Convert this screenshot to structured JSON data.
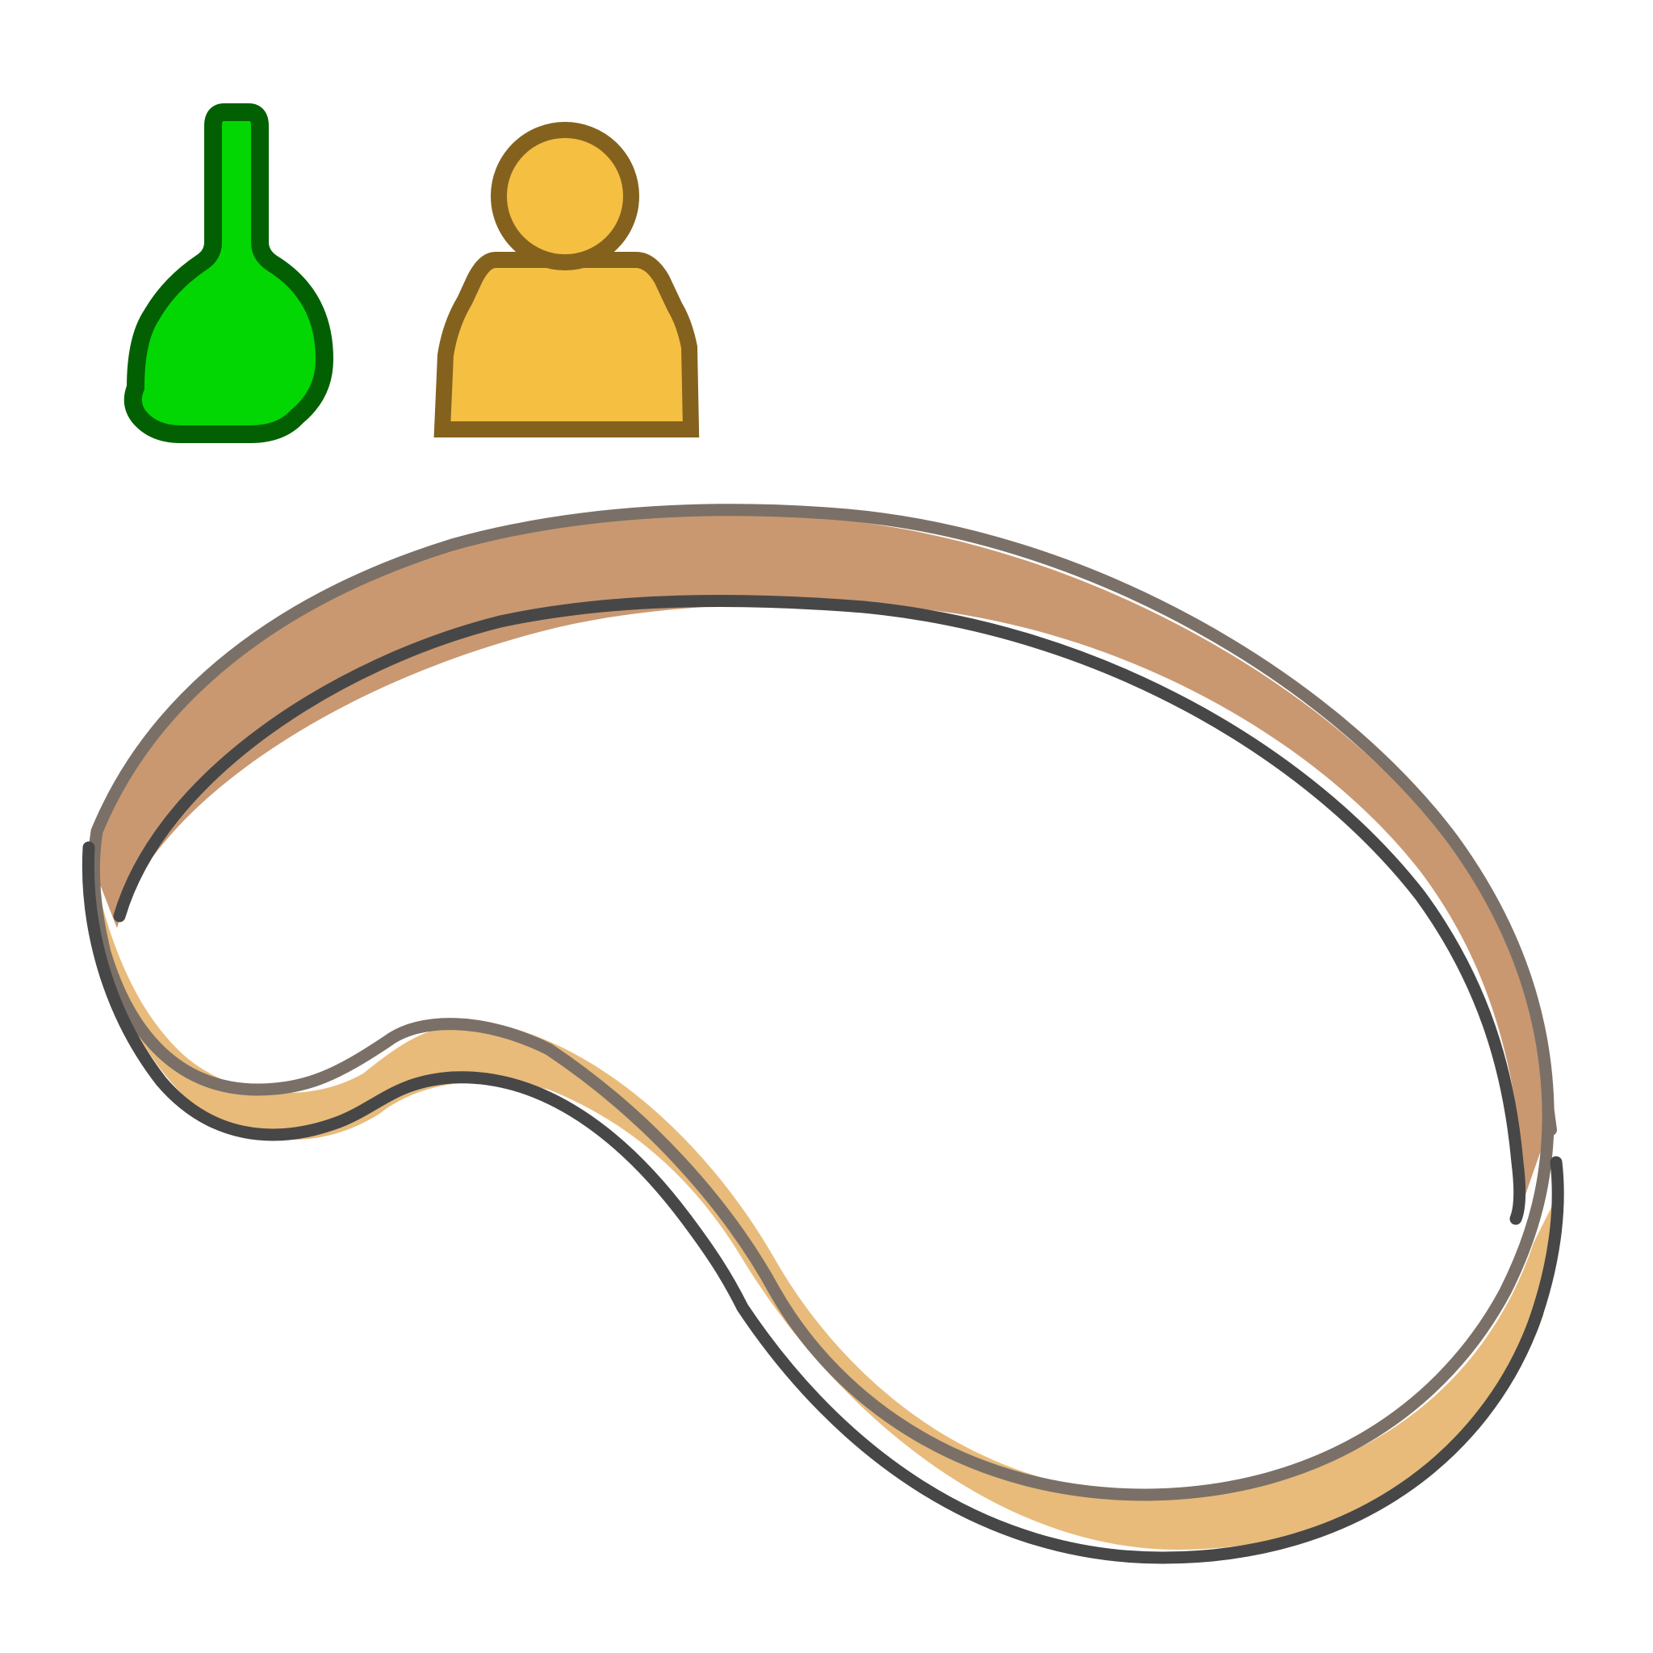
{
  "board": {
    "pieces": [
      {
        "name": "green-pawn",
        "fill": "#03d703",
        "stroke": "#026003"
      },
      {
        "name": "yellow-meeple",
        "fill": "#f5bf42",
        "stroke": "#84621e"
      }
    ],
    "track": {
      "name": "ribbon-track",
      "outer_color": "#c99871",
      "inner_color": "#e8bb7b",
      "top_edge_color": "#7a7067",
      "bottom_edge_color": "#474747"
    },
    "background_color": "#ffffff"
  }
}
